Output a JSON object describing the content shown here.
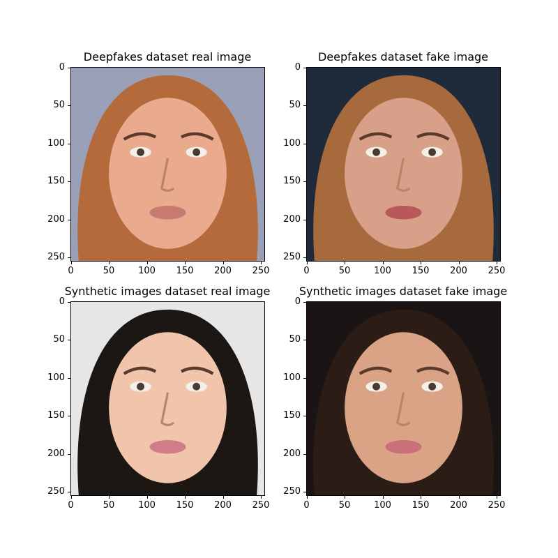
{
  "panels": [
    {
      "id": "p1",
      "title": "Deepfakes dataset real image",
      "colors": {
        "bg": "#9aa0b8",
        "skin": "#e9aa8e",
        "hair": "#b46a3a",
        "lip": "#c77a6f"
      }
    },
    {
      "id": "p2",
      "title": "Deepfakes dataset fake image",
      "colors": {
        "bg": "#1f2a3a",
        "skin": "#d9a089",
        "hair": "#a66a3c",
        "lip": "#b9575b"
      }
    },
    {
      "id": "p3",
      "title": "Synthetic images dataset real image",
      "colors": {
        "bg": "#e6e6e6",
        "skin": "#f0c5ab",
        "hair": "#1d1714",
        "lip": "#cf7d87"
      }
    },
    {
      "id": "p4",
      "title": "Synthetic images dataset fake image",
      "colors": {
        "bg": "#1a1514",
        "skin": "#dba386",
        "hair": "#2b1d16",
        "lip": "#c9707a"
      }
    }
  ],
  "axis": {
    "y_ticks": [
      "0",
      "50",
      "100",
      "150",
      "200",
      "250"
    ],
    "x_ticks": [
      "0",
      "50",
      "100",
      "150",
      "200",
      "250"
    ]
  }
}
